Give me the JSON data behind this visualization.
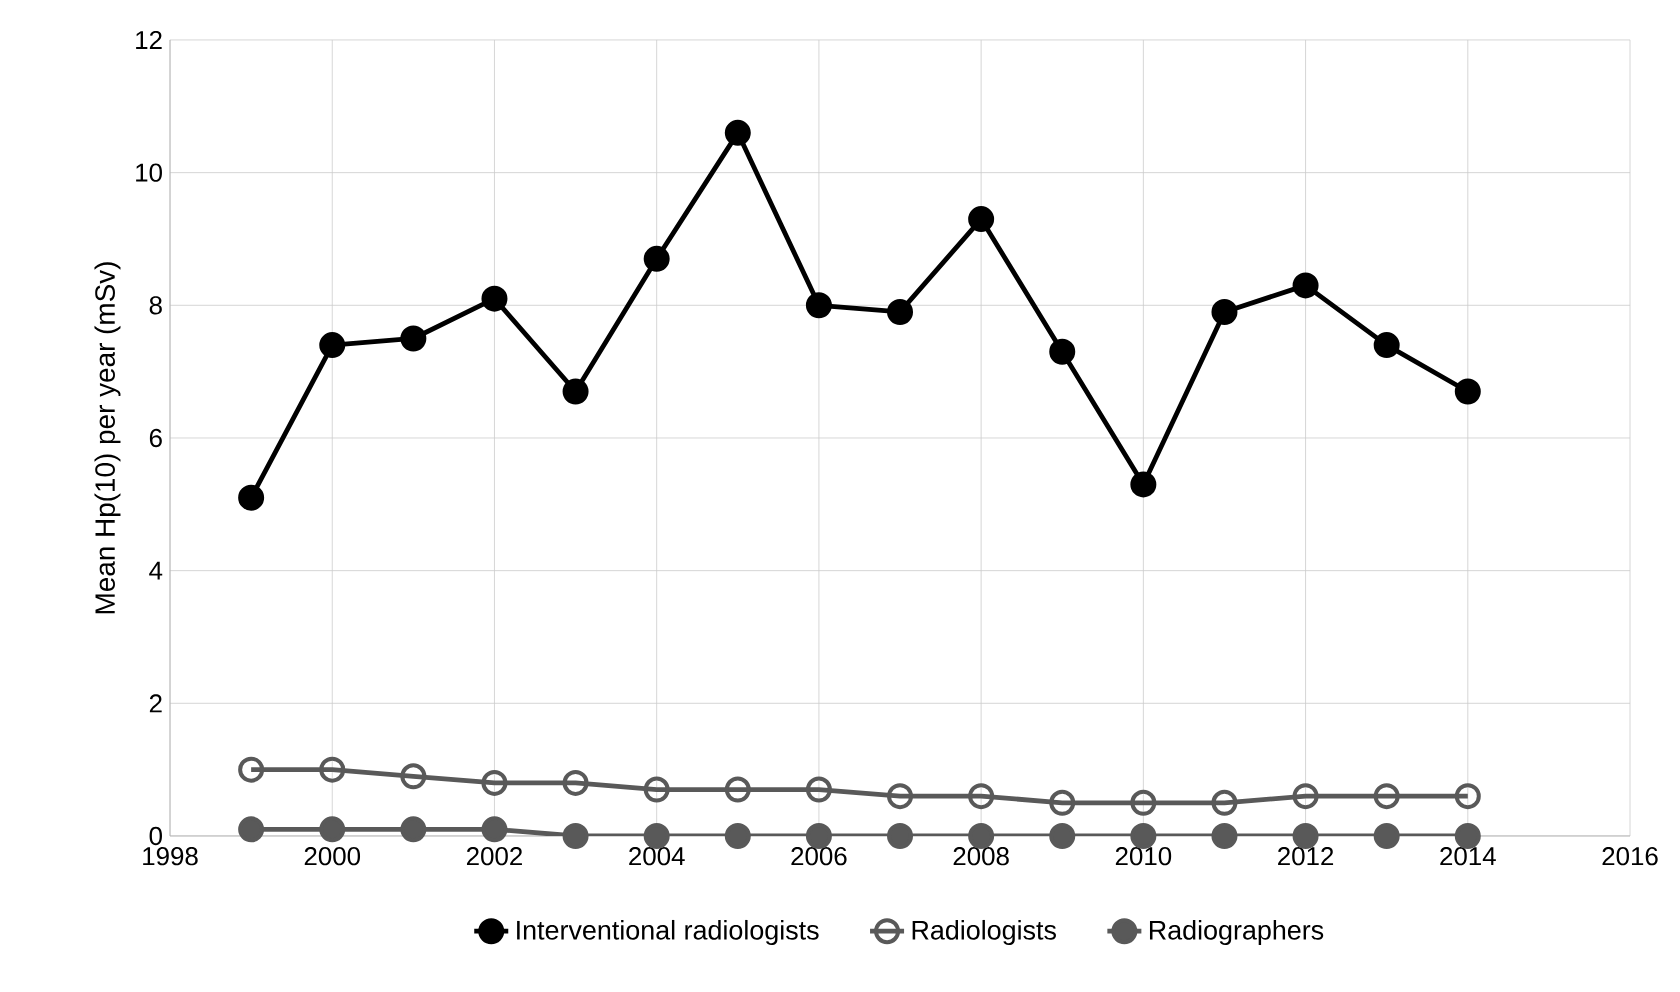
{
  "chart_data": {
    "type": "line",
    "ylabel": "Mean Hp(10) per year (mSv)",
    "x": [
      1999,
      2000,
      2001,
      2002,
      2003,
      2004,
      2005,
      2006,
      2007,
      2008,
      2009,
      2010,
      2011,
      2012,
      2013,
      2014
    ],
    "series": [
      {
        "name": "Interventional radiologists",
        "color": "#000000",
        "marker": "circle",
        "values": [
          5.1,
          7.4,
          7.5,
          8.1,
          6.7,
          8.7,
          10.6,
          8.0,
          7.9,
          9.3,
          7.3,
          5.3,
          7.9,
          8.3,
          7.4,
          6.7
        ]
      },
      {
        "name": "Radiologists",
        "color": "#595959",
        "marker": "open circle",
        "values": [
          1.0,
          1.0,
          0.9,
          0.8,
          0.8,
          0.7,
          0.7,
          0.7,
          0.6,
          0.6,
          0.5,
          0.5,
          0.5,
          0.6,
          0.6,
          0.6
        ]
      },
      {
        "name": "Radiographers",
        "color": "#595959",
        "marker": "circle",
        "values": [
          0.1,
          0.1,
          0.1,
          0.1,
          0,
          0,
          0,
          0,
          0,
          0,
          0,
          0,
          0,
          0,
          0,
          0
        ]
      }
    ],
    "xlim": [
      1998,
      2016
    ],
    "xticks": [
      1998,
      2000,
      2002,
      2004,
      2006,
      2008,
      2010,
      2012,
      2014,
      2016
    ],
    "ylim": [
      0,
      12
    ],
    "yticks": [
      0,
      2,
      4,
      6,
      8,
      10,
      12
    ],
    "grid": true,
    "legend": "bottom",
    "line_style": "solid"
  }
}
